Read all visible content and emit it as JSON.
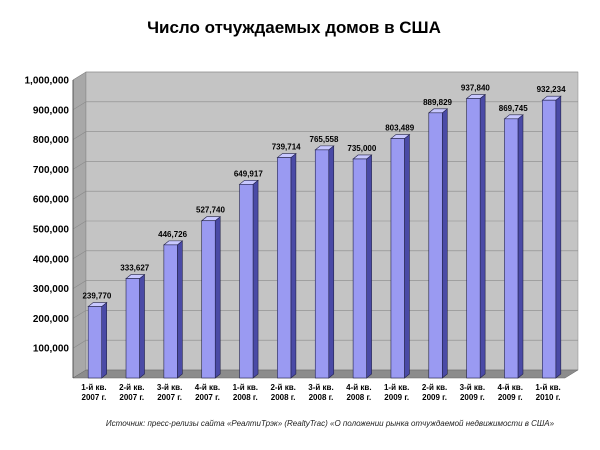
{
  "chart_data": {
    "type": "bar",
    "title": "Число отчуждаемых домов в США",
    "xlabel": "",
    "ylabel": "",
    "ylim": [
      0,
      1000000
    ],
    "yticks": [
      "1,000,000",
      "900,000",
      "800,000",
      "700,000",
      "600,000",
      "500,000",
      "400,000",
      "300,000",
      "200,000",
      "100,000"
    ],
    "ytick_values": [
      1000000,
      900000,
      800000,
      700000,
      600000,
      500000,
      400000,
      300000,
      200000,
      100000
    ],
    "categories": [
      [
        "1-й кв.",
        "2007 г."
      ],
      [
        "2-й кв.",
        "2007 г."
      ],
      [
        "3-й кв.",
        "2007 г."
      ],
      [
        "4-й кв.",
        "2007 г."
      ],
      [
        "1-й кв.",
        "2008 г."
      ],
      [
        "2-й кв.",
        "2008 г."
      ],
      [
        "3-й кв.",
        "2008 г."
      ],
      [
        "4-й кв.",
        "2008 г."
      ],
      [
        "1-й кв.",
        "2009 г."
      ],
      [
        "2-й кв.",
        "2009 г."
      ],
      [
        "3-й кв.",
        "2009 г."
      ],
      [
        "4-й кв.",
        "2009 г."
      ],
      [
        "1-й кв.",
        "2010 г."
      ]
    ],
    "values": [
      239770,
      333627,
      446726,
      527740,
      649917,
      739714,
      765558,
      735000,
      803489,
      889829,
      937840,
      869745,
      932234
    ],
    "data_labels": [
      "239,770",
      "333,627",
      "446,726",
      "527,740",
      "649,917",
      "739,714",
      "765,558",
      "735,000",
      "803,489",
      "889,829",
      "937,840",
      "869,745",
      "932,234"
    ],
    "grid": true,
    "legend": "none",
    "source": "Источник: пресс-релизы сайта «РеалтиТрэк» (RealtyTrac) «О положении рынка отчуждаемой недвижимости в США»",
    "colors": {
      "bar_front": "#9a9af2",
      "bar_side": "#4a4aa6",
      "bar_top": "#c8c8ff",
      "bar_edge": "#22224a",
      "plot_back": "#c4c4c4",
      "plot_floor": "#8c8c8c",
      "plot_wall": "#a8a8a8",
      "grid": "#8a8a8a"
    }
  }
}
